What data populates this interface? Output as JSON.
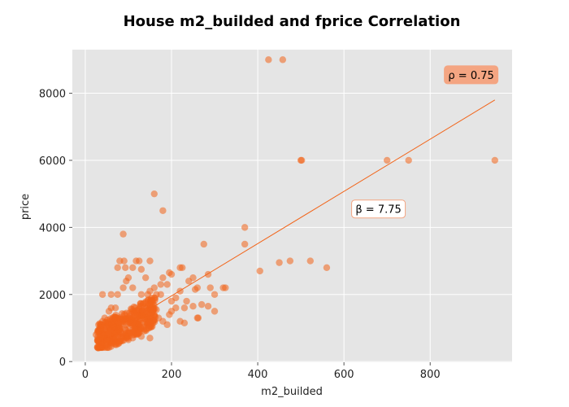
{
  "chart_data": {
    "type": "scatter",
    "title": "House m2_builded and fprice Correlation",
    "xlabel": "m2_builded",
    "ylabel": "price",
    "xlim": [
      -30,
      990
    ],
    "ylim": [
      -20,
      9300
    ],
    "xticks": [
      0,
      200,
      400,
      600,
      800
    ],
    "yticks": [
      0,
      2000,
      4000,
      6000,
      8000
    ],
    "grid": true,
    "point_color": "#f26419",
    "line_color": "#f26419",
    "background_color": "#e5e5e5",
    "regression_line": {
      "x": [
        100,
        950
      ],
      "y": [
        1180,
        7800
      ]
    },
    "annotations": [
      {
        "text": "ρ = 0.75",
        "x": 895,
        "y": 8550,
        "box_fill": "#f4a582",
        "box_stroke": "#f4a582"
      },
      {
        "text": "β = 7.75",
        "x": 680,
        "y": 4550,
        "box_fill": "#ffffff",
        "box_stroke": "#f4a582"
      }
    ],
    "points": [
      [
        425,
        9000
      ],
      [
        458,
        9000
      ],
      [
        500,
        6000
      ],
      [
        502,
        6000
      ],
      [
        700,
        6000
      ],
      [
        750,
        6000
      ],
      [
        950,
        6000
      ],
      [
        160,
        5000
      ],
      [
        180,
        4500
      ],
      [
        370,
        4000
      ],
      [
        88,
        3800
      ],
      [
        275,
        3500
      ],
      [
        370,
        3500
      ],
      [
        522,
        3000
      ],
      [
        475,
        3000
      ],
      [
        450,
        2950
      ],
      [
        560,
        2800
      ],
      [
        405,
        2700
      ],
      [
        80,
        3000
      ],
      [
        90,
        3000
      ],
      [
        118,
        3000
      ],
      [
        125,
        3000
      ],
      [
        150,
        3000
      ],
      [
        75,
        2800
      ],
      [
        93,
        2800
      ],
      [
        110,
        2800
      ],
      [
        130,
        2750
      ],
      [
        220,
        2800
      ],
      [
        225,
        2800
      ],
      [
        200,
        2600
      ],
      [
        195,
        2650
      ],
      [
        180,
        2500
      ],
      [
        140,
        2500
      ],
      [
        100,
        2500
      ],
      [
        240,
        2400
      ],
      [
        250,
        2500
      ],
      [
        285,
        2600
      ],
      [
        260,
        2200
      ],
      [
        290,
        2200
      ],
      [
        320,
        2200
      ],
      [
        325,
        2200
      ],
      [
        300,
        2000
      ],
      [
        255,
        2150
      ],
      [
        220,
        2100
      ],
      [
        190,
        2300
      ],
      [
        175,
        2300
      ],
      [
        160,
        2200
      ],
      [
        150,
        2100
      ],
      [
        40,
        2000
      ],
      [
        60,
        2000
      ],
      [
        75,
        2000
      ],
      [
        88,
        2200
      ],
      [
        95,
        2400
      ],
      [
        110,
        2200
      ],
      [
        130,
        2000
      ],
      [
        145,
        2000
      ],
      [
        175,
        2000
      ],
      [
        165,
        2000
      ],
      [
        210,
        1900
      ],
      [
        200,
        1800
      ],
      [
        235,
        1800
      ],
      [
        270,
        1700
      ],
      [
        285,
        1650
      ],
      [
        300,
        1500
      ],
      [
        250,
        1650
      ],
      [
        230,
        1600
      ],
      [
        210,
        1600
      ],
      [
        200,
        1500
      ],
      [
        195,
        1400
      ],
      [
        220,
        1200
      ],
      [
        230,
        1150
      ],
      [
        260,
        1300
      ],
      [
        262,
        1300
      ],
      [
        190,
        1100
      ],
      [
        180,
        1200
      ],
      [
        170,
        1300
      ],
      [
        160,
        1400
      ],
      [
        155,
        1450
      ],
      [
        165,
        1550
      ],
      [
        60,
        1600
      ],
      [
        70,
        1600
      ],
      [
        55,
        1500
      ],
      [
        25,
        800
      ],
      [
        30,
        900
      ],
      [
        35,
        1000
      ],
      [
        40,
        1200
      ],
      [
        45,
        1300
      ],
      [
        30,
        400
      ],
      [
        40,
        450
      ],
      [
        50,
        500
      ],
      [
        60,
        450
      ],
      [
        80,
        600
      ],
      [
        100,
        650
      ],
      [
        110,
        700
      ],
      [
        130,
        750
      ],
      [
        150,
        700
      ]
    ]
  }
}
